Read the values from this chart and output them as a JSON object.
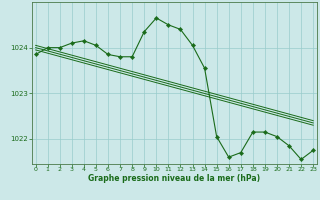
{
  "xlabel": "Graphe pression niveau de la mer (hPa)",
  "bg_color": "#cce8e8",
  "grid_color": "#99cccc",
  "line_color": "#1a6b1a",
  "xlim": [
    -0.3,
    23.3
  ],
  "ylim": [
    1021.45,
    1025.0
  ],
  "yticks": [
    1022,
    1023,
    1024
  ],
  "xticks": [
    0,
    1,
    2,
    3,
    4,
    5,
    6,
    7,
    8,
    9,
    10,
    11,
    12,
    13,
    14,
    15,
    16,
    17,
    18,
    19,
    20,
    21,
    22,
    23
  ],
  "main_line": [
    1023.85,
    1024.0,
    1024.0,
    1024.1,
    1024.15,
    1024.05,
    1023.85,
    1023.8,
    1023.8,
    1024.35,
    1024.65,
    1024.5,
    1024.4,
    1024.05,
    1023.55,
    1022.05,
    1021.6,
    1021.7,
    1022.15,
    1022.15,
    1022.05,
    1021.85,
    1021.55,
    1021.75
  ],
  "trend_lines": [
    [
      [
        0,
        23
      ],
      [
        1024.05,
        1022.4
      ]
    ],
    [
      [
        0,
        23
      ],
      [
        1024.0,
        1022.35
      ]
    ],
    [
      [
        0,
        23
      ],
      [
        1023.95,
        1022.3
      ]
    ]
  ]
}
